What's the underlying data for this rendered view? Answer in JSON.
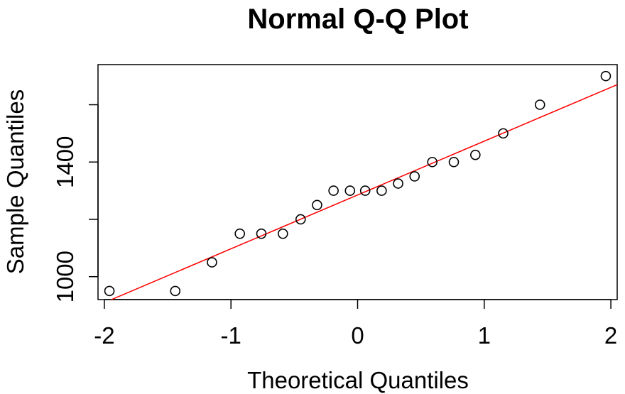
{
  "chart_data": {
    "type": "scatter",
    "title": "Normal Q-Q Plot",
    "xlabel": "Theoretical Quantiles",
    "ylabel": "Sample Quantiles",
    "xlim": [
      -2.05,
      2.05
    ],
    "ylim": [
      920,
      1740
    ],
    "xticks": [
      -2,
      -1,
      0,
      1,
      2
    ],
    "xtick_labels": [
      "-2",
      "-1",
      "0",
      "1",
      "2"
    ],
    "yticks": [
      1000,
      1200,
      1400,
      1600
    ],
    "ytick_labels": [
      "1000",
      "",
      "1400",
      ""
    ],
    "grid": false,
    "points": [
      {
        "x": -1.96,
        "y": 950
      },
      {
        "x": -1.44,
        "y": 950
      },
      {
        "x": -1.15,
        "y": 1050
      },
      {
        "x": -0.93,
        "y": 1150
      },
      {
        "x": -0.76,
        "y": 1150
      },
      {
        "x": -0.59,
        "y": 1150
      },
      {
        "x": -0.45,
        "y": 1200
      },
      {
        "x": -0.32,
        "y": 1250
      },
      {
        "x": -0.19,
        "y": 1300
      },
      {
        "x": -0.06,
        "y": 1300
      },
      {
        "x": 0.06,
        "y": 1300
      },
      {
        "x": 0.19,
        "y": 1300
      },
      {
        "x": 0.32,
        "y": 1325
      },
      {
        "x": 0.45,
        "y": 1350
      },
      {
        "x": 0.59,
        "y": 1400
      },
      {
        "x": 0.76,
        "y": 1400
      },
      {
        "x": 0.93,
        "y": 1425
      },
      {
        "x": 1.15,
        "y": 1500
      },
      {
        "x": 1.44,
        "y": 1600
      },
      {
        "x": 1.96,
        "y": 1700
      }
    ],
    "reference_line": {
      "x1": -2.05,
      "y1": 900,
      "x2": 2.05,
      "y2": 1670,
      "color": "#ff0000"
    }
  }
}
